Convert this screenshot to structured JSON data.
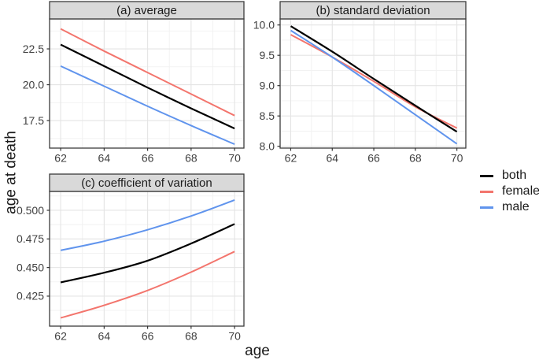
{
  "figure": {
    "ylabel": "age at death",
    "xlabel": "age",
    "background": "#ffffff"
  },
  "legend": {
    "position": "right",
    "items": [
      {
        "label": "both",
        "color": "#000000"
      },
      {
        "label": "female",
        "color": "#F3756D"
      },
      {
        "label": "male",
        "color": "#6094ED"
      }
    ]
  },
  "style": {
    "panel_bg": "#ffffff",
    "panel_border": "#3b3b3b",
    "grid_major": "#e4e4e4",
    "grid_minor": "#f1f1f1",
    "strip_bg": "#d9d9d9",
    "strip_border": "#3b3b3b",
    "strip_text_color": "#1a1a1a",
    "tick_color": "#333333",
    "tick_label_color": "#404040"
  },
  "chart_data": [
    {
      "id": "a",
      "type": "line",
      "title": "(a) average",
      "x": [
        62,
        64,
        66,
        68,
        70
      ],
      "xtick_labels": [
        "62",
        "64",
        "66",
        "68",
        "70"
      ],
      "xticks_minor": [
        63,
        65,
        67,
        69
      ],
      "xlim": [
        61.49,
        70.43
      ],
      "ylim": [
        15.58,
        24.59
      ],
      "yticks": [
        17.5,
        20.0,
        22.5
      ],
      "ytick_labels": [
        "17.5",
        "20.0",
        "22.5"
      ],
      "yticks_minor": [
        16.25,
        18.75,
        21.25,
        23.75
      ],
      "grid": true,
      "series": [
        {
          "name": "female",
          "color": "#F3756D",
          "width": 2,
          "values": [
            23.9,
            22.35,
            20.85,
            19.35,
            17.85
          ]
        },
        {
          "name": "male",
          "color": "#6094ED",
          "width": 2,
          "values": [
            21.3,
            19.9,
            18.5,
            17.15,
            15.85
          ]
        },
        {
          "name": "both",
          "color": "#000000",
          "width": 2.2,
          "values": [
            22.8,
            21.3,
            19.8,
            18.35,
            16.95
          ]
        }
      ]
    },
    {
      "id": "b",
      "type": "line",
      "title": "(b) standard deviation",
      "x": [
        62,
        64,
        66,
        68,
        70
      ],
      "xtick_labels": [
        "62",
        "64",
        "66",
        "68",
        "70"
      ],
      "xticks_minor": [
        63,
        65,
        67,
        69
      ],
      "xlim": [
        61.49,
        70.43
      ],
      "ylim": [
        7.97,
        10.1
      ],
      "yticks": [
        8.0,
        8.5,
        9.0,
        9.5,
        10.0
      ],
      "ytick_labels": [
        "8.0",
        "8.5",
        "9.0",
        "9.5",
        "10.0"
      ],
      "yticks_minor": [
        8.25,
        8.75,
        9.25,
        9.75
      ],
      "grid": true,
      "series": [
        {
          "name": "female",
          "color": "#F3756D",
          "width": 2,
          "values": [
            9.84,
            9.47,
            9.07,
            8.65,
            8.3
          ]
        },
        {
          "name": "male",
          "color": "#6094ED",
          "width": 2,
          "values": [
            9.91,
            9.47,
            9.0,
            8.52,
            8.04
          ]
        },
        {
          "name": "both",
          "color": "#000000",
          "width": 2.2,
          "values": [
            9.98,
            9.56,
            9.11,
            8.67,
            8.24
          ]
        }
      ]
    },
    {
      "id": "c",
      "type": "line",
      "title": "(c) coefficient of variation",
      "x": [
        62,
        64,
        66,
        68,
        70
      ],
      "xtick_labels": [
        "62",
        "64",
        "66",
        "68",
        "70"
      ],
      "xticks_minor": [
        63,
        65,
        67,
        69
      ],
      "xlim": [
        61.49,
        70.43
      ],
      "ylim": [
        0.3988,
        0.5165
      ],
      "yticks": [
        0.425,
        0.45,
        0.475,
        0.5
      ],
      "ytick_labels": [
        "0.425",
        "0.450",
        "0.475",
        "0.500"
      ],
      "yticks_minor": [
        0.4125,
        0.4375,
        0.4625,
        0.4875,
        0.5125
      ],
      "grid": true,
      "series": [
        {
          "name": "female",
          "color": "#F3756D",
          "width": 2,
          "values": [
            0.406,
            0.417,
            0.43,
            0.446,
            0.464
          ]
        },
        {
          "name": "male",
          "color": "#6094ED",
          "width": 2,
          "values": [
            0.465,
            0.473,
            0.483,
            0.495,
            0.509
          ]
        },
        {
          "name": "both",
          "color": "#000000",
          "width": 2.2,
          "values": [
            0.437,
            0.4455,
            0.456,
            0.471,
            0.488
          ]
        }
      ]
    }
  ]
}
